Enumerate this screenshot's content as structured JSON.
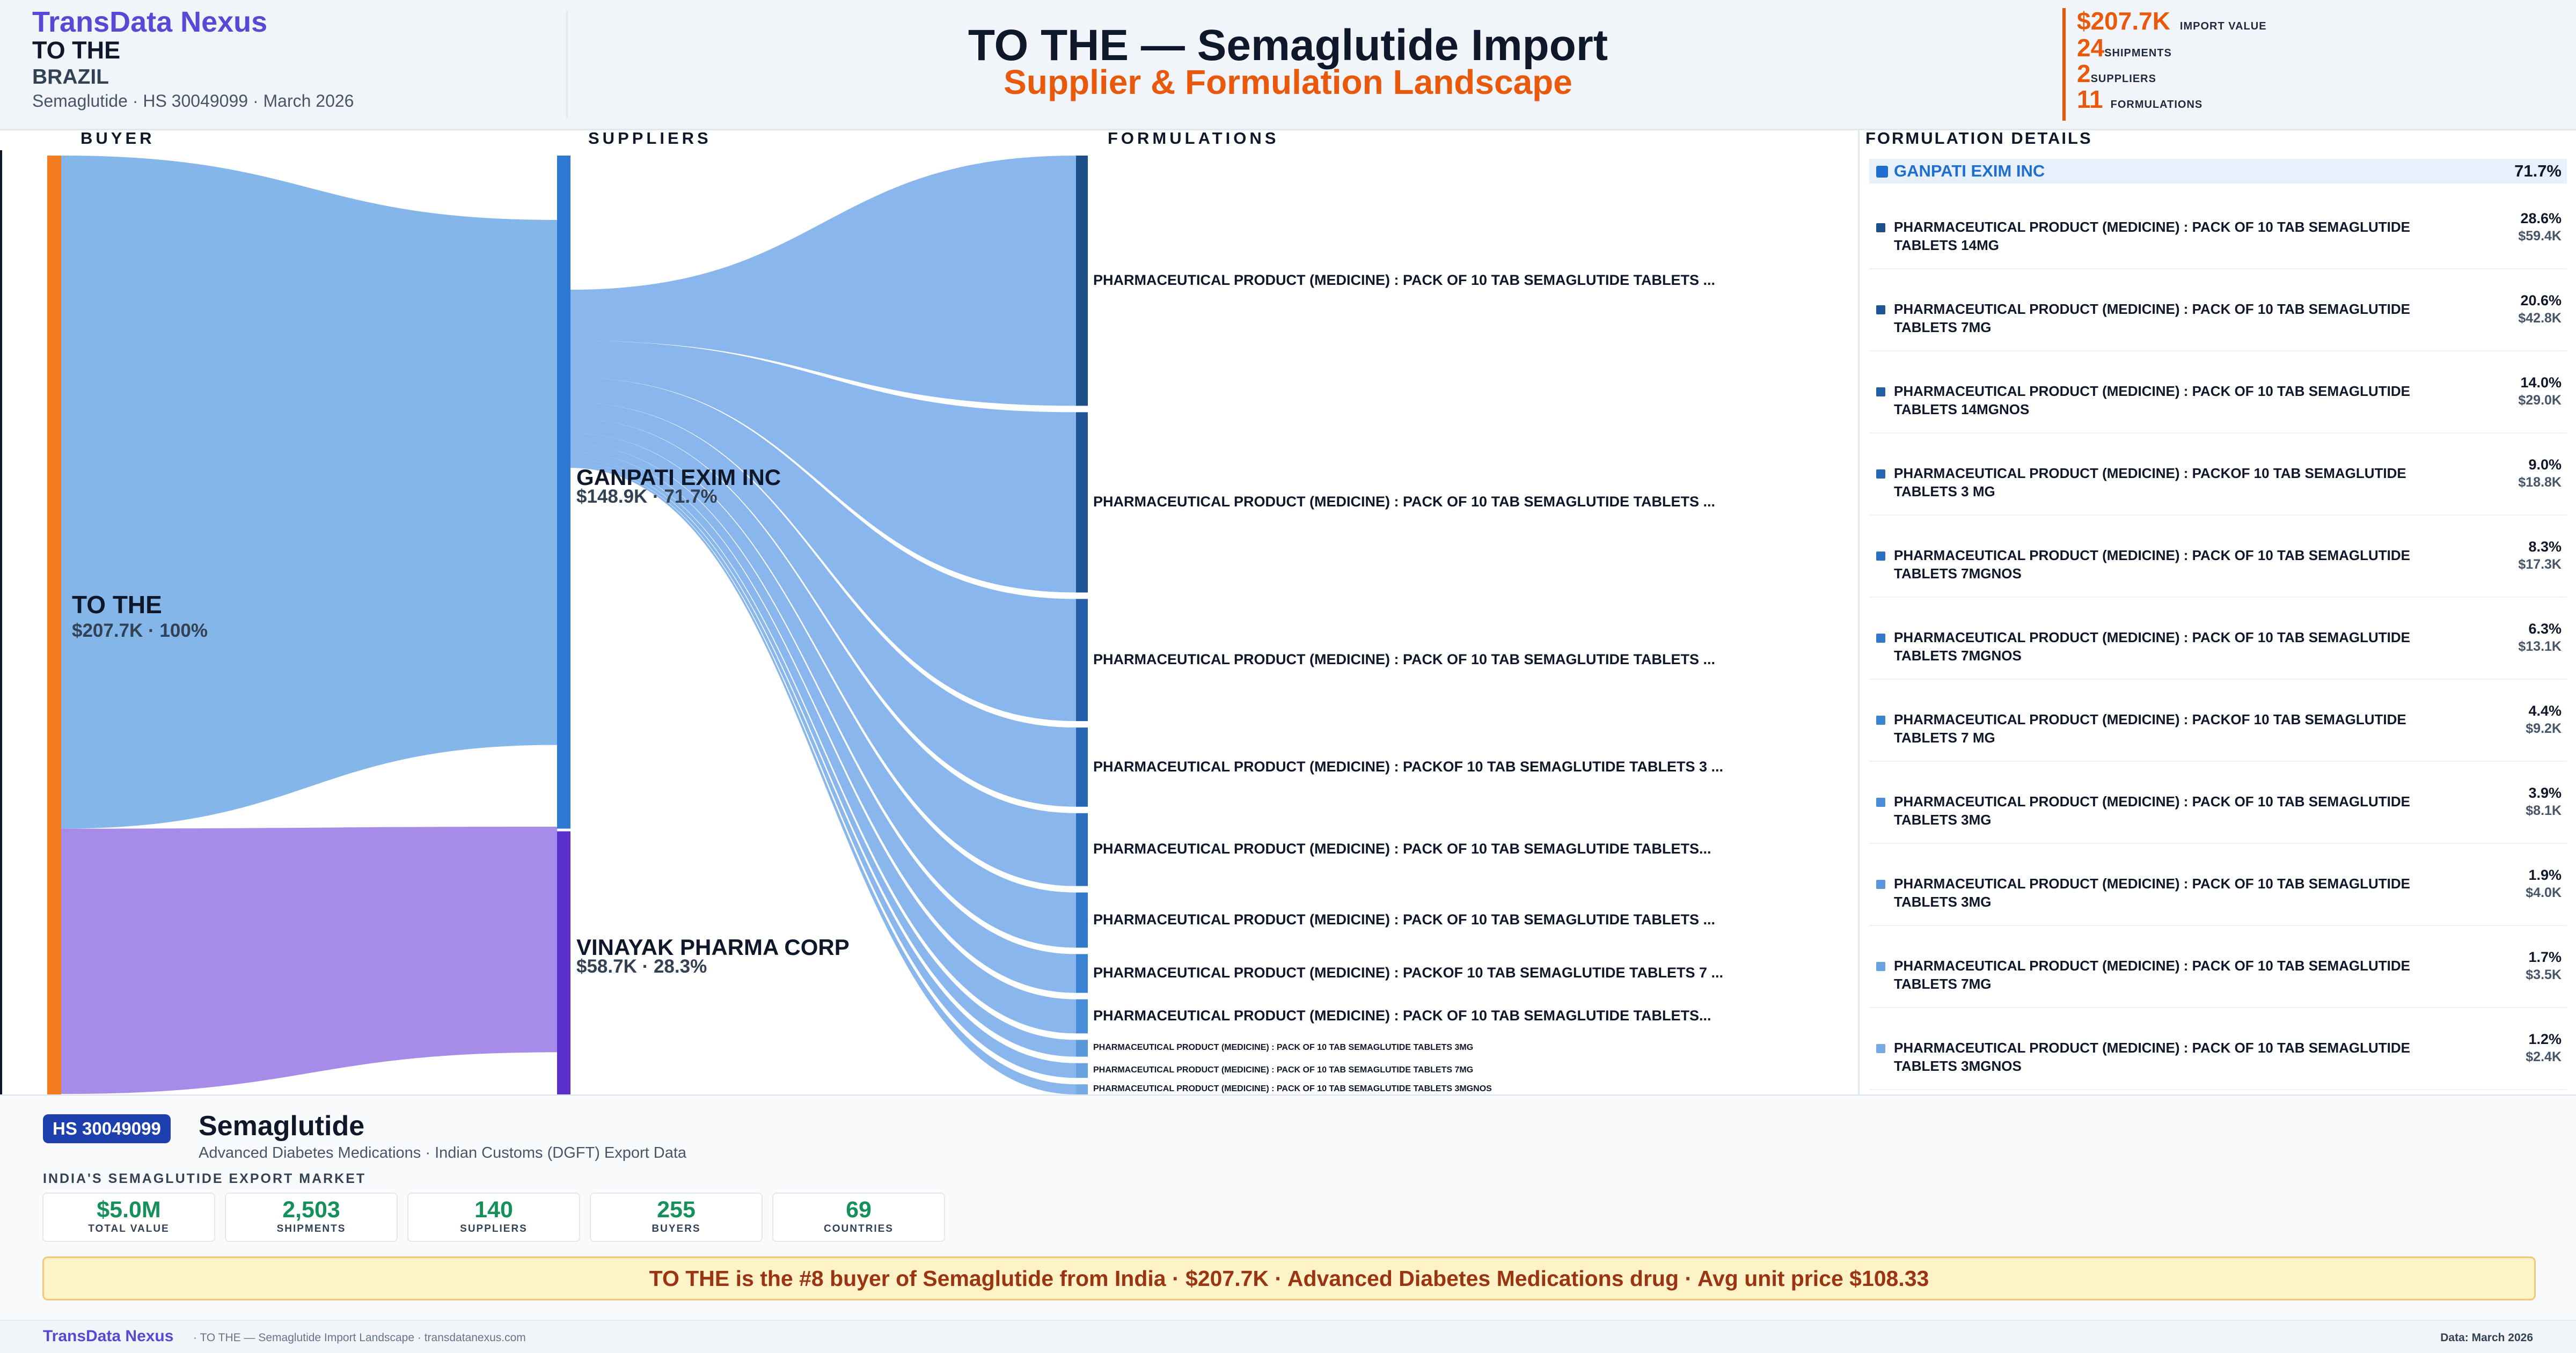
{
  "header": {
    "brand": "TransData Nexus",
    "buyer": "TO THE",
    "country": "BRAZIL",
    "meta": "Semaglutide · HS 30049099 · March 2026",
    "title": "TO THE — Semaglutide Import",
    "subtitle": "Supplier & Formulation Landscape",
    "stats": [
      {
        "value": "$207.7K",
        "label": "IMPORT VALUE"
      },
      {
        "value": "24",
        "label": "SHIPMENTS"
      },
      {
        "value": "2",
        "label": "SUPPLIERS"
      },
      {
        "value": "11",
        "label": "FORMULATIONS"
      }
    ]
  },
  "columns": {
    "buyer": "BUYER",
    "suppliers": "SUPPLIERS",
    "formulations": "FORMULATIONS",
    "details": "FORMULATION DETAILS"
  },
  "chart_data": {
    "type": "sankey",
    "buyer": {
      "name": "TO THE",
      "label": "$207.7K · 100%",
      "value": 207.7
    },
    "suppliers": [
      {
        "name": "GANPATI EXIM INC",
        "label": "$148.9K · 71.7%",
        "value": 148.9,
        "color": "#2f78d4"
      },
      {
        "name": "VINAYAK PHARMA CORP",
        "label": "$58.7K · 28.3%",
        "value": 58.7,
        "color": "#5b2fc9"
      }
    ],
    "formulations": [
      {
        "label": "PHARMACEUTICAL PRODUCT (MEDICINE) : PACK OF 10 TAB SEMAGLUTIDE TABLETS ...",
        "value": 59.4
      },
      {
        "label": "PHARMACEUTICAL PRODUCT (MEDICINE) : PACK OF 10 TAB SEMAGLUTIDE TABLETS ...",
        "value": 42.8
      },
      {
        "label": "PHARMACEUTICAL PRODUCT (MEDICINE) : PACK OF 10 TAB SEMAGLUTIDE TABLETS ...",
        "value": 29.0
      },
      {
        "label": "PHARMACEUTICAL PRODUCT (MEDICINE) : PACKOF 10 TAB SEMAGLUTIDE TABLETS 3 ...",
        "value": 18.8
      },
      {
        "label": "PHARMACEUTICAL PRODUCT (MEDICINE) : PACK OF 10 TAB SEMAGLUTIDE TABLETS...",
        "value": 17.3
      },
      {
        "label": "PHARMACEUTICAL PRODUCT (MEDICINE) : PACK OF 10 TAB SEMAGLUTIDE TABLETS ...",
        "value": 13.1
      },
      {
        "label": "PHARMACEUTICAL PRODUCT (MEDICINE) : PACKOF 10 TAB SEMAGLUTIDE TABLETS 7 ...",
        "value": 9.2
      },
      {
        "label": "PHARMACEUTICAL PRODUCT (MEDICINE) : PACK OF 10 TAB SEMAGLUTIDE TABLETS...",
        "value": 8.1
      },
      {
        "label": "PHARMACEUTICAL PRODUCT (MEDICINE) : PACK OF 10 TAB SEMAGLUTIDE TABLETS 3MG",
        "value": 4.0
      },
      {
        "label": "PHARMACEUTICAL PRODUCT (MEDICINE) : PACK OF 10 TAB SEMAGLUTIDE TABLETS 7MG",
        "value": 3.5
      },
      {
        "label": "PHARMACEUTICAL PRODUCT (MEDICINE) : PACK OF 10 TAB SEMAGLUTIDE TABLETS 3MGNOS",
        "value": 2.4
      }
    ]
  },
  "details": {
    "supplier": {
      "name": "GANPATI EXIM INC",
      "pct": "71.7%"
    },
    "rows": [
      {
        "name": "PHARMACEUTICAL PRODUCT (MEDICINE) : PACK OF 10 TAB SEMAGLUTIDE TABLETS 14MG",
        "pct": "28.6%",
        "value": "$59.4K",
        "color": "#1d4f8a"
      },
      {
        "name": "PHARMACEUTICAL PRODUCT (MEDICINE) : PACK OF 10 TAB SEMAGLUTIDE TABLETS 7MG",
        "pct": "20.6%",
        "value": "$42.8K",
        "color": "#1f5597"
      },
      {
        "name": "PHARMACEUTICAL PRODUCT (MEDICINE) : PACK OF 10 TAB SEMAGLUTIDE TABLETS 14MGNOS",
        "pct": "14.0%",
        "value": "$29.0K",
        "color": "#235ea6"
      },
      {
        "name": "PHARMACEUTICAL PRODUCT (MEDICINE) : PACKOF 10 TAB SEMAGLUTIDE TABLETS 3 MG",
        "pct": "9.0%",
        "value": "$18.8K",
        "color": "#2767b3"
      },
      {
        "name": "PHARMACEUTICAL PRODUCT (MEDICINE) : PACK OF 10 TAB SEMAGLUTIDE TABLETS 7MGNOS",
        "pct": "8.3%",
        "value": "$17.3K",
        "color": "#2b6fbf"
      },
      {
        "name": "PHARMACEUTICAL PRODUCT (MEDICINE) : PACK OF 10 TAB SEMAGLUTIDE TABLETS 7MGNOS",
        "pct": "6.3%",
        "value": "$13.1K",
        "color": "#3078c9"
      },
      {
        "name": "PHARMACEUTICAL PRODUCT (MEDICINE) : PACKOF 10 TAB SEMAGLUTIDE TABLETS 7 MG",
        "pct": "4.4%",
        "value": "$9.2K",
        "color": "#3a82d2"
      },
      {
        "name": "PHARMACEUTICAL PRODUCT (MEDICINE) : PACK OF 10 TAB SEMAGLUTIDE TABLETS 3MG",
        "pct": "3.9%",
        "value": "$8.1K",
        "color": "#4a8dd8"
      },
      {
        "name": "PHARMACEUTICAL PRODUCT (MEDICINE) : PACK OF 10 TAB SEMAGLUTIDE TABLETS 3MG",
        "pct": "1.9%",
        "value": "$4.0K",
        "color": "#5a98dc"
      },
      {
        "name": "PHARMACEUTICAL PRODUCT (MEDICINE) : PACK OF 10 TAB SEMAGLUTIDE TABLETS 7MG",
        "pct": "1.7%",
        "value": "$3.5K",
        "color": "#6aa2e0"
      },
      {
        "name": "PHARMACEUTICAL PRODUCT (MEDICINE) : PACK OF 10 TAB SEMAGLUTIDE TABLETS 3MGNOS",
        "pct": "1.2%",
        "value": "$2.4K",
        "color": "#78abe3"
      }
    ]
  },
  "bottom": {
    "hs_badge": "HS 30049099",
    "drug": "Semaglutide",
    "drug_sub": "Advanced Diabetes Medications · Indian Customs (DGFT) Export Data",
    "market_heading": "INDIA'S SEMAGLUTIDE EXPORT MARKET",
    "kpis": [
      {
        "value": "$5.0M",
        "label": "TOTAL VALUE"
      },
      {
        "value": "2,503",
        "label": "SHIPMENTS"
      },
      {
        "value": "140",
        "label": "SUPPLIERS"
      },
      {
        "value": "255",
        "label": "BUYERS"
      },
      {
        "value": "69",
        "label": "COUNTRIES"
      }
    ],
    "banner": "TO THE is the #8 buyer of Semaglutide from India · $207.7K · Advanced Diabetes Medications drug · Avg unit price $108.33"
  },
  "footer": {
    "brand": "TransData Nexus",
    "text": "· TO THE — Semaglutide Import Landscape · transdatanexus.com",
    "right": "Data: March 2026"
  }
}
